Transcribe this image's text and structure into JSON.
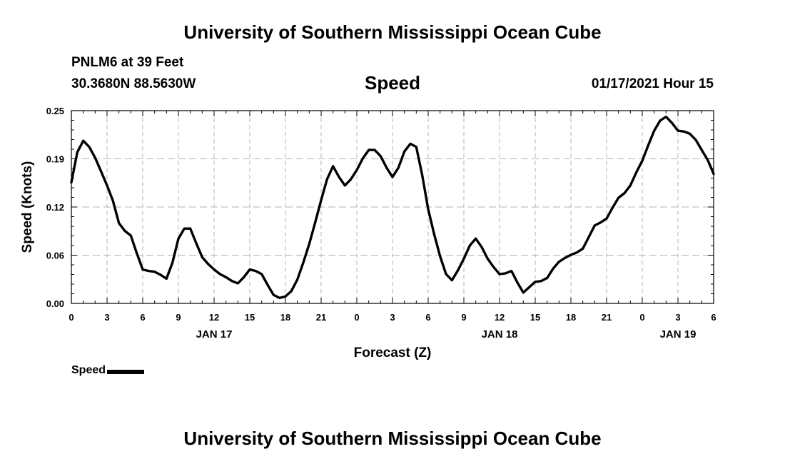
{
  "page": {
    "title_top": "University of Southern Mississippi Ocean Cube",
    "title_bottom": "University of Southern Mississippi Ocean Cube",
    "station": "PNLM6 at 39 Feet",
    "coords": "30.3680N 88.5630W",
    "timestamp": "01/17/2021 Hour 15"
  },
  "chart_data": {
    "type": "line",
    "title": "Speed",
    "xlabel": "Forecast (Z)",
    "ylabel": "Speed (Knots)",
    "x_range_hours": [
      0,
      54
    ],
    "ylim": [
      0,
      0.25
    ],
    "y_ticks": [
      {
        "value": 0.0,
        "label": "0.00"
      },
      {
        "value": 0.0625,
        "label": "0.06"
      },
      {
        "value": 0.125,
        "label": "0.12"
      },
      {
        "value": 0.1875,
        "label": "0.19"
      },
      {
        "value": 0.25,
        "label": "0.25"
      }
    ],
    "x_ticks": [
      {
        "hour": 0,
        "label": "0"
      },
      {
        "hour": 3,
        "label": "3"
      },
      {
        "hour": 6,
        "label": "6"
      },
      {
        "hour": 9,
        "label": "9"
      },
      {
        "hour": 12,
        "label": "12"
      },
      {
        "hour": 15,
        "label": "15"
      },
      {
        "hour": 18,
        "label": "18"
      },
      {
        "hour": 21,
        "label": "21"
      },
      {
        "hour": 24,
        "label": "0"
      },
      {
        "hour": 27,
        "label": "3"
      },
      {
        "hour": 30,
        "label": "6"
      },
      {
        "hour": 33,
        "label": "9"
      },
      {
        "hour": 36,
        "label": "12"
      },
      {
        "hour": 39,
        "label": "15"
      },
      {
        "hour": 42,
        "label": "18"
      },
      {
        "hour": 45,
        "label": "21"
      },
      {
        "hour": 48,
        "label": "0"
      },
      {
        "hour": 51,
        "label": "3"
      },
      {
        "hour": 54,
        "label": "6"
      }
    ],
    "date_labels": [
      {
        "hour": 12,
        "label": "JAN 17"
      },
      {
        "hour": 36,
        "label": "JAN 18"
      },
      {
        "hour": 51,
        "label": "JAN 19"
      }
    ],
    "legend": {
      "position": "bottom-left",
      "entries": [
        "Speed"
      ]
    },
    "series": [
      {
        "name": "Speed",
        "x": [
          0,
          0.5,
          1,
          1.5,
          2,
          2.5,
          3,
          3.5,
          4,
          4.5,
          5,
          5.5,
          6,
          6.5,
          7,
          7.5,
          8,
          8.5,
          9,
          9.5,
          10,
          10.5,
          11,
          11.5,
          12,
          12.5,
          13,
          13.5,
          14,
          14.5,
          15,
          15.5,
          16,
          16.5,
          17,
          17.5,
          18,
          18.5,
          19,
          19.5,
          20,
          20.5,
          21,
          21.5,
          22,
          22.5,
          23,
          23.5,
          24,
          24.5,
          25,
          25.5,
          26,
          26.5,
          27,
          27.5,
          28,
          28.5,
          29,
          29.5,
          30,
          30.5,
          31,
          31.5,
          32,
          32.5,
          33,
          33.5,
          34,
          34.5,
          35,
          35.5,
          36,
          36.5,
          37,
          37.5,
          38,
          38.5,
          39,
          39.5,
          40,
          40.5,
          41,
          41.5,
          42,
          42.5,
          43,
          43.5,
          44,
          44.5,
          45,
          45.5,
          46,
          46.5,
          47,
          47.5,
          48,
          48.5,
          49,
          49.5,
          50,
          50.5,
          51,
          51.5,
          52,
          52.5,
          53,
          53.5,
          54
        ],
        "values": [
          0.157,
          0.196,
          0.211,
          0.203,
          0.189,
          0.171,
          0.153,
          0.133,
          0.104,
          0.094,
          0.088,
          0.065,
          0.044,
          0.042,
          0.041,
          0.037,
          0.032,
          0.053,
          0.084,
          0.097,
          0.097,
          0.078,
          0.06,
          0.051,
          0.044,
          0.038,
          0.034,
          0.029,
          0.026,
          0.034,
          0.044,
          0.042,
          0.038,
          0.024,
          0.011,
          0.007,
          0.009,
          0.016,
          0.031,
          0.053,
          0.077,
          0.105,
          0.134,
          0.161,
          0.178,
          0.164,
          0.153,
          0.161,
          0.173,
          0.188,
          0.199,
          0.199,
          0.191,
          0.176,
          0.164,
          0.176,
          0.197,
          0.207,
          0.203,
          0.166,
          0.122,
          0.09,
          0.061,
          0.038,
          0.03,
          0.043,
          0.058,
          0.075,
          0.084,
          0.073,
          0.058,
          0.047,
          0.038,
          0.039,
          0.042,
          0.027,
          0.014,
          0.021,
          0.028,
          0.029,
          0.033,
          0.045,
          0.054,
          0.059,
          0.063,
          0.066,
          0.071,
          0.086,
          0.101,
          0.105,
          0.11,
          0.124,
          0.137,
          0.143,
          0.153,
          0.17,
          0.185,
          0.205,
          0.224,
          0.237,
          0.242,
          0.234,
          0.224,
          0.223,
          0.22,
          0.212,
          0.199,
          0.186,
          0.168
        ]
      }
    ]
  }
}
